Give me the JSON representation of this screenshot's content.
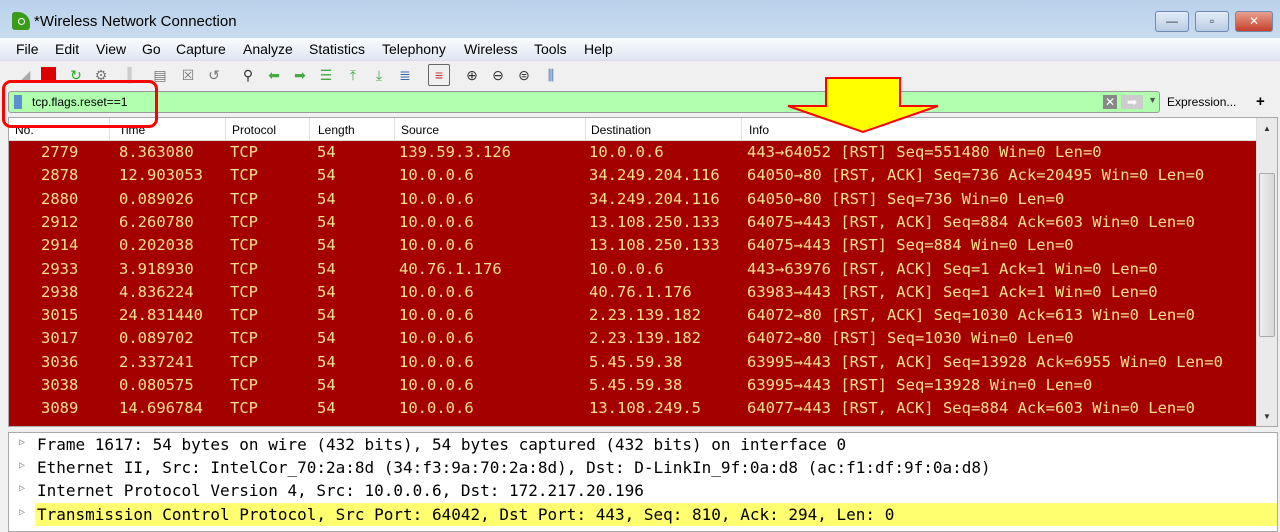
{
  "window": {
    "title": "*Wireless Network Connection",
    "buttons": {
      "minimize": "—",
      "maximize": "▫",
      "close": "✕"
    }
  },
  "menu": [
    "File",
    "Edit",
    "View",
    "Go",
    "Capture",
    "Analyze",
    "Statistics",
    "Telephony",
    "Wireless",
    "Tools",
    "Help"
  ],
  "toolbar": [
    "shark-fin-start-icon",
    "stop-icon",
    "restart-icon",
    "options-gear-icon",
    "open-icon",
    "save-icon",
    "close-file-icon",
    "reload-icon",
    "find-icon",
    "back-arrow-icon",
    "forward-arrow-icon",
    "go-to-packet-icon",
    "first-packet-icon",
    "last-packet-icon",
    "autoscroll-icon",
    "colorize-icon",
    "zoom-in-icon",
    "zoom-out-icon",
    "zoom-normal-icon",
    "resize-columns-icon"
  ],
  "filter": {
    "value": "tcp.flags.reset==1",
    "background": "#afffaf",
    "expression_label": "Expression...",
    "add_label": "+"
  },
  "packet_list": {
    "columns": [
      "No.",
      "Time",
      "Protocol",
      "Length",
      "Source",
      "Destination",
      "Info"
    ],
    "row_background": "#a40000",
    "row_text_color": "#f7e18c",
    "rows": [
      [
        "2779",
        "8.363080",
        "TCP",
        "54",
        "139.59.3.126",
        "10.0.0.6",
        "443→64052 [RST] Seq=551480 Win=0 Len=0"
      ],
      [
        "2878",
        "12.903053",
        "TCP",
        "54",
        "10.0.0.6",
        "34.249.204.116",
        "64050→80 [RST, ACK] Seq=736 Ack=20495 Win=0 Len=0"
      ],
      [
        "2880",
        "0.089026",
        "TCP",
        "54",
        "10.0.0.6",
        "34.249.204.116",
        "64050→80 [RST] Seq=736 Win=0 Len=0"
      ],
      [
        "2912",
        "6.260780",
        "TCP",
        "54",
        "10.0.0.6",
        "13.108.250.133",
        "64075→443 [RST, ACK] Seq=884 Ack=603 Win=0 Len=0"
      ],
      [
        "2914",
        "0.202038",
        "TCP",
        "54",
        "10.0.0.6",
        "13.108.250.133",
        "64075→443 [RST] Seq=884 Win=0 Len=0"
      ],
      [
        "2933",
        "3.918930",
        "TCP",
        "54",
        "40.76.1.176",
        "10.0.0.6",
        "443→63976 [RST, ACK] Seq=1 Ack=1 Win=0 Len=0"
      ],
      [
        "2938",
        "4.836224",
        "TCP",
        "54",
        "10.0.0.6",
        "40.76.1.176",
        "63983→443 [RST, ACK] Seq=1 Ack=1 Win=0 Len=0"
      ],
      [
        "3015",
        "24.831440",
        "TCP",
        "54",
        "10.0.0.6",
        "2.23.139.182",
        "64072→80 [RST, ACK] Seq=1030 Ack=613 Win=0 Len=0"
      ],
      [
        "3017",
        "0.089702",
        "TCP",
        "54",
        "10.0.0.6",
        "2.23.139.182",
        "64072→80 [RST] Seq=1030 Win=0 Len=0"
      ],
      [
        "3036",
        "2.337241",
        "TCP",
        "54",
        "10.0.0.6",
        "5.45.59.38",
        "63995→443 [RST, ACK] Seq=13928 Ack=6955 Win=0 Len=0"
      ],
      [
        "3038",
        "0.080575",
        "TCP",
        "54",
        "10.0.0.6",
        "5.45.59.38",
        "63995→443 [RST] Seq=13928 Win=0 Len=0"
      ],
      [
        "3089",
        "14.696784",
        "TCP",
        "54",
        "10.0.0.6",
        "13.108.249.5",
        "64077→443 [RST, ACK] Seq=884 Ack=603 Win=0 Len=0"
      ]
    ]
  },
  "details": [
    "Frame 1617: 54 bytes on wire (432 bits), 54 bytes captured (432 bits) on interface 0",
    "Ethernet II, Src: IntelCor_70:2a:8d (34:f3:9a:70:2a:8d), Dst: D-LinkIn_9f:0a:d8 (ac:f1:df:9f:0a:d8)",
    "Internet Protocol Version 4, Src: 10.0.0.6, Dst: 172.217.20.196",
    "Transmission Control Protocol, Src Port: 64042, Dst Port: 443, Seq: 810, Ack: 294, Len: 0"
  ],
  "annotations": {
    "box_color": "#ff0000",
    "arrow_fill": "#ffff00",
    "arrow_stroke": "#ff0000"
  }
}
